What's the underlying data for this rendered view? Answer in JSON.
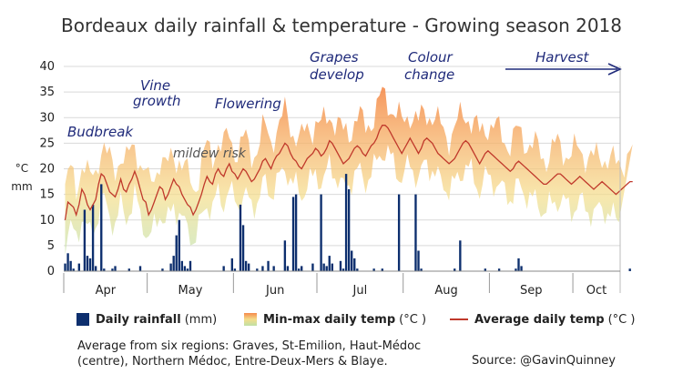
{
  "title": "Bordeaux daily rainfall & temperature - Growing season 2018",
  "chart_data": {
    "type": "bar+area+line",
    "title": "Bordeaux daily rainfall & temperature - Growing season 2018",
    "ylabel_units": [
      "°C",
      "mm"
    ],
    "ylim": [
      0,
      40
    ],
    "yticks": [
      "0",
      "5",
      "10",
      "15",
      "20",
      "25",
      "30",
      "35",
      "40"
    ],
    "months": [
      "Apr",
      "May",
      "Jun",
      "Jul",
      "Aug",
      "Sep",
      "Oct"
    ],
    "days": 200,
    "start_date": "1 April 2018",
    "annotations": [
      "Budbreak",
      "Vine growth",
      "mildew risk",
      "Flowering",
      "Grapes develop",
      "Colour change",
      "Harvest"
    ],
    "rainfall_mm": [
      1.5,
      3.5,
      2,
      0.5,
      0,
      1.5,
      0,
      12,
      3,
      2.5,
      13,
      1,
      0,
      17,
      0.5,
      0,
      0,
      0.5,
      1,
      0,
      0,
      0,
      0,
      0.5,
      0,
      0,
      0,
      1,
      0,
      0,
      0,
      0,
      0,
      0,
      0,
      0.5,
      0,
      0,
      1.5,
      3,
      7,
      10,
      2,
      1,
      0.5,
      2,
      0,
      0,
      0,
      0,
      0,
      0,
      0,
      0,
      0,
      0,
      0,
      1,
      0,
      0,
      2.5,
      0.5,
      0,
      13,
      9,
      2,
      1.5,
      0,
      0,
      0.5,
      0,
      1,
      0,
      2,
      0,
      1,
      0,
      0,
      0,
      6,
      1,
      0,
      14.5,
      15,
      0.5,
      1,
      0,
      0,
      0,
      1.5,
      0,
      0,
      15,
      1.5,
      1,
      3,
      1.5,
      0,
      0,
      2,
      0.5,
      19,
      16,
      4,
      2.5,
      0.5,
      0,
      0,
      0,
      0,
      0,
      0.5,
      0,
      0,
      0.5,
      0,
      0,
      0,
      0,
      0,
      15,
      0,
      0,
      0,
      0,
      0,
      15,
      4,
      0.5,
      0,
      0,
      0,
      0,
      0,
      0,
      0,
      0,
      0,
      0,
      0,
      0.5,
      0,
      6,
      0,
      0,
      0,
      0,
      0,
      0,
      0,
      0,
      0.5,
      0,
      0,
      0,
      0,
      0.5,
      0,
      0,
      0,
      0,
      0,
      0.5,
      2.5,
      1,
      0,
      0,
      0,
      0,
      0,
      0,
      0,
      0,
      0,
      0,
      0,
      0,
      0,
      0,
      0,
      0,
      0,
      0,
      0,
      0,
      0,
      0,
      0,
      0,
      0,
      0,
      0,
      0,
      0,
      0,
      0,
      0,
      0,
      0,
      0,
      0,
      0,
      0,
      0.5,
      0,
      0,
      0,
      0,
      0,
      0,
      0,
      0,
      0,
      0,
      0
    ],
    "avg_temp_c": [
      10,
      13.5,
      13,
      12.5,
      11,
      13,
      16,
      15,
      13,
      12,
      13,
      14,
      17,
      19,
      18.5,
      17,
      15.5,
      15,
      14.5,
      16,
      18,
      16,
      15.5,
      17,
      18,
      19.5,
      18,
      16,
      14,
      13.5,
      11,
      12,
      13.5,
      15,
      16.5,
      16,
      14,
      15,
      16.5,
      18,
      17,
      16.5,
      15,
      14,
      13,
      12.5,
      11,
      12,
      13.5,
      15,
      17,
      18.5,
      17.5,
      17,
      19,
      20,
      19,
      18.5,
      20,
      21,
      19.5,
      19,
      18,
      19,
      20,
      19.5,
      18.5,
      17.5,
      18,
      19,
      20,
      21.5,
      22,
      21,
      20,
      21.5,
      22.5,
      23,
      24,
      25,
      24.5,
      23,
      22,
      21.5,
      20.5,
      20,
      21,
      22,
      22.5,
      23,
      24,
      23.5,
      22.5,
      23,
      24,
      25.5,
      25,
      24,
      23,
      22,
      21,
      21.5,
      22,
      23,
      24,
      24.5,
      24,
      23,
      22.5,
      23.5,
      24.5,
      25,
      26,
      27.5,
      28.5,
      28.5,
      28,
      27,
      26,
      25,
      24,
      23,
      24,
      25,
      26,
      25,
      24,
      23,
      24,
      25.5,
      26,
      25.5,
      25,
      24,
      23,
      22.5,
      22,
      21.5,
      21,
      21.5,
      22,
      23,
      24,
      25,
      25.5,
      25,
      24,
      23,
      22,
      21,
      22,
      23,
      23.5,
      23,
      22.5,
      22,
      21.5,
      21,
      20.5,
      20,
      19.5,
      20,
      21,
      21.5,
      21,
      20.5,
      20,
      19.5,
      19,
      18.5,
      18,
      17.5,
      17,
      17,
      17.5,
      18,
      18.5,
      19,
      19,
      18.5,
      18,
      17.5,
      17,
      17.5,
      18,
      18.5,
      18,
      17.5,
      17,
      16.5,
      16,
      16.5,
      17,
      17.5,
      17,
      16.5,
      16,
      15.5,
      15,
      15.5,
      16,
      16.5,
      17,
      17.5,
      17.5
    ]
  },
  "legend": {
    "rain_label": "Daily rainfall",
    "rain_unit": "(mm)",
    "minmax_label": "Min-max daily temp",
    "minmax_unit": "(°C )",
    "avg_label": "Average daily temp",
    "avg_unit": "(°C )"
  },
  "note": "Average from six regions: Graves, St-Emilion, Haut-Médoc (centre), Northern Médoc, Entre-Deux-Mers & Blaye.",
  "source": "Source: @GavinQuinney",
  "colors": {
    "rain": "#0d2f6e",
    "avg_line": "#c0392b",
    "grid": "#d9d9d9",
    "annotation": "#1f2a7a"
  }
}
